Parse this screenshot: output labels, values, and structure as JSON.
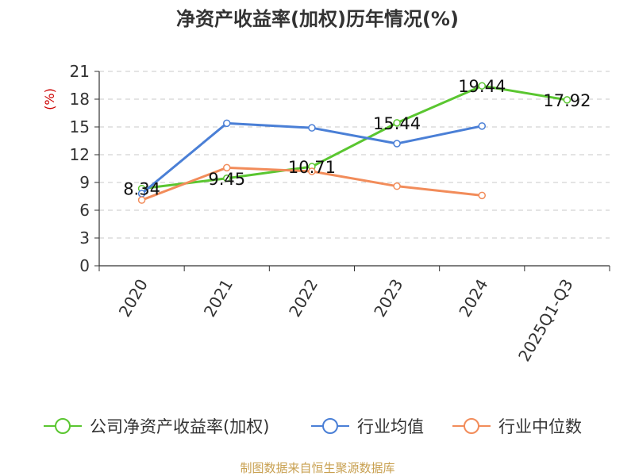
{
  "chart_data": {
    "type": "line",
    "title": "净资产收益率(加权)历年情况(%)",
    "ylabel": "(%)",
    "categories": [
      "2020",
      "2021",
      "2022",
      "2023",
      "2024",
      "2025Q1-Q3"
    ],
    "ylim": [
      0,
      21
    ],
    "yticks": [
      0,
      3,
      6,
      9,
      12,
      15,
      18,
      21
    ],
    "grid": true,
    "legend_position": "bottom",
    "series": [
      {
        "name": "公司净资产收益率(加权)",
        "color": "#5ac630",
        "values": [
          8.34,
          9.45,
          10.71,
          15.44,
          19.44,
          17.92
        ],
        "labels": [
          "8.34",
          "9.45",
          "10.71",
          "15.44",
          "19.44",
          "17.92"
        ]
      },
      {
        "name": "行业均值",
        "color": "#4a7fd6",
        "values": [
          7.8,
          15.4,
          14.9,
          13.2,
          15.1,
          null
        ]
      },
      {
        "name": "行业中位数",
        "color": "#f28c5a",
        "values": [
          7.1,
          10.6,
          10.2,
          8.6,
          7.6,
          null
        ]
      }
    ]
  },
  "source": "制图数据来自恒生聚源数据库"
}
